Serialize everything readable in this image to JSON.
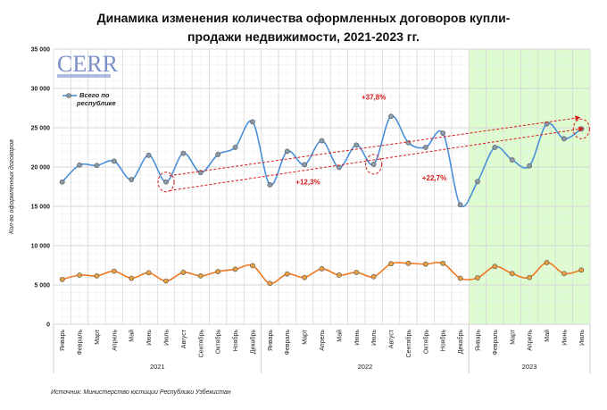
{
  "chart_data": {
    "type": "line",
    "title": "Динамика изменения количества оформленных договоров купли-продажи недвижимости, 2021-2023 гг.",
    "title_lines": [
      "Динамика изменения количества оформленных договоров купли-",
      "продажи недвижимости, 2021-2023 гг."
    ],
    "ylabel": "Кол-во оформленных договоров",
    "xlabel": "",
    "ylim": [
      0,
      35000
    ],
    "yticks": [
      0,
      5000,
      10000,
      15000,
      20000,
      25000,
      30000,
      35000
    ],
    "ytick_labels": [
      "0",
      "5 000",
      "10 000",
      "15 000",
      "20 000",
      "25 000",
      "30 000",
      "35 000"
    ],
    "grid": true,
    "categories": [
      "Январь",
      "Февраль",
      "Март",
      "Апрель",
      "Май",
      "Июнь",
      "Июль",
      "Август",
      "Сентябрь",
      "Октябрь",
      "Ноябрь",
      "Декабрь",
      "Январь",
      "Февраль",
      "Март",
      "Апрель",
      "Май",
      "Июнь",
      "Июль",
      "Август",
      "Сентябрь",
      "Октябрь",
      "Ноябрь",
      "Декабрь",
      "Январь",
      "Февраль",
      "Март",
      "Апрель",
      "Май",
      "Июнь",
      "Июль"
    ],
    "years": [
      {
        "label": "2021",
        "months": 12
      },
      {
        "label": "2022",
        "months": 12
      },
      {
        "label": "2023",
        "months": 7
      }
    ],
    "highlight_year": "2023",
    "highlight_color": "#ddfcd0",
    "legend_position": "top-left",
    "series": [
      {
        "name": "Всего по республике",
        "color": "#4a90d9",
        "marker_color": "#8a9aa8",
        "values": [
          18100,
          20250,
          20200,
          20750,
          18400,
          21500,
          18100,
          21750,
          19300,
          21600,
          22500,
          25750,
          17750,
          22000,
          20300,
          23350,
          19950,
          22800,
          20350,
          26450,
          23100,
          22500,
          24300,
          15200,
          18150,
          22500,
          20900,
          20150,
          25500,
          23600,
          24850
        ]
      },
      {
        "color": "#f07820",
        "marker_color": "#e8a040",
        "values": [
          5700,
          6250,
          6150,
          6750,
          5850,
          6550,
          5500,
          6600,
          6150,
          6700,
          7000,
          7450,
          5200,
          6400,
          5950,
          7050,
          6250,
          6600,
          6050,
          7700,
          7750,
          7650,
          7750,
          5850,
          5900,
          7350,
          6450,
          5950,
          7850,
          6450,
          6900
        ]
      }
    ],
    "annotations": {
      "labels": [
        {
          "text": "+37,8%",
          "x_index": 18,
          "y": 28600
        },
        {
          "text": "+12,3%",
          "x_index": 14.2,
          "y": 17800
        },
        {
          "text": "+22,7%",
          "x_index": 21.5,
          "y": 18300
        }
      ],
      "arrows": [
        {
          "from_index": 6.2,
          "from_y": 18900,
          "to_index": 29.9,
          "to_y": 26300
        },
        {
          "from_index": 6.2,
          "from_y": 17000,
          "to_index": 30.1,
          "to_y": 24900
        }
      ],
      "circled_indices": [
        6,
        18,
        30
      ]
    },
    "source": "Источник: Министерство юстиции Республики Узбекистан"
  },
  "logo": {
    "text": "CERR"
  }
}
